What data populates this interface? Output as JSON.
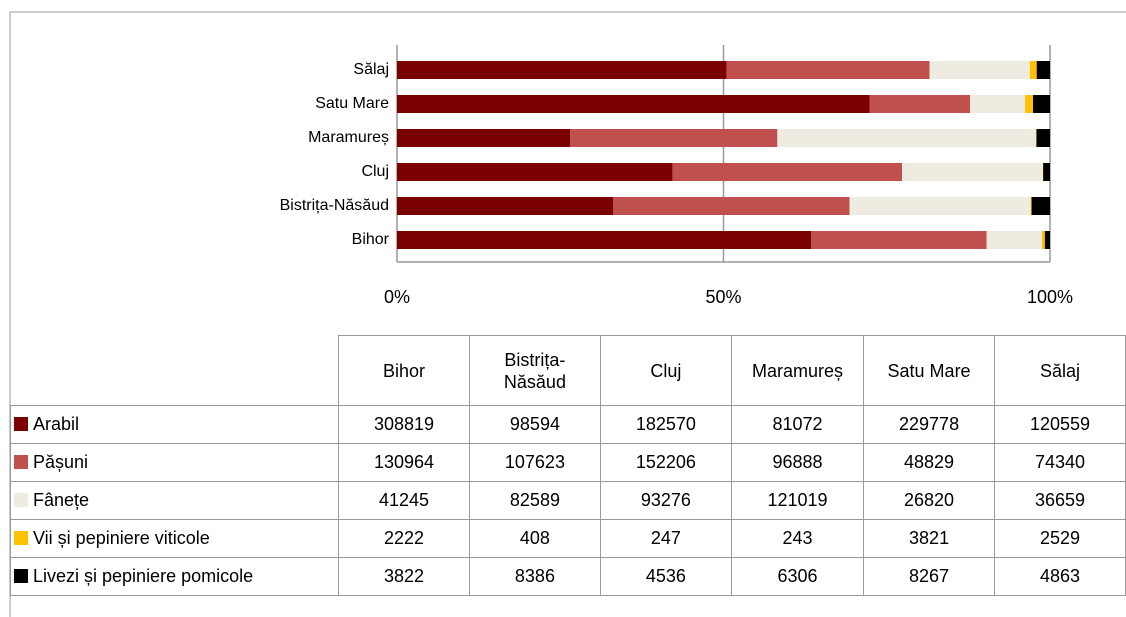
{
  "chart_data": {
    "type": "bar",
    "stacked": "percent",
    "orientation": "horizontal",
    "categories": [
      "Bihor",
      "Bistrița-Năsăud",
      "Cluj",
      "Maramureș",
      "Satu Mare",
      "Sălaj"
    ],
    "series": [
      {
        "name": "Arabil",
        "color": "#7b0000",
        "values": [
          308819,
          98594,
          182570,
          81072,
          229778,
          120559
        ]
      },
      {
        "name": "Pășuni",
        "color": "#c0504d",
        "values": [
          130964,
          107623,
          152206,
          96888,
          48829,
          74340
        ]
      },
      {
        "name": "Fânețe",
        "color": "#eeece1",
        "values": [
          41245,
          82589,
          93276,
          121019,
          26820,
          36659
        ]
      },
      {
        "name": "Vii și pepiniere viticole",
        "color": "#ffc000",
        "values": [
          2222,
          408,
          247,
          243,
          3821,
          2529
        ]
      },
      {
        "name": "Livezi și pepiniere pomicole",
        "color": "#000000",
        "values": [
          3822,
          8386,
          4536,
          6306,
          8267,
          4863
        ]
      }
    ],
    "xlim": [
      0,
      100
    ],
    "xticks": [
      {
        "value": 0,
        "label": "0%"
      },
      {
        "value": 50,
        "label": "50%"
      },
      {
        "value": 100,
        "label": "100%"
      }
    ],
    "grid": true
  }
}
